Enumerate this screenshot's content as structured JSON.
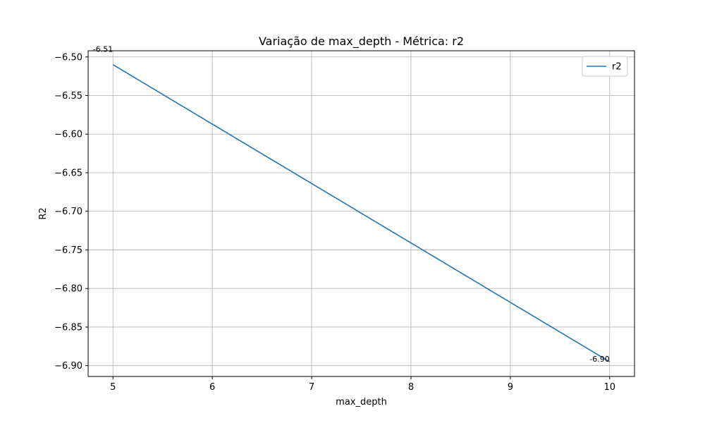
{
  "chart_data": {
    "type": "line",
    "title": "Variação de max_depth - Métrica: r2",
    "xlabel": "max_depth",
    "ylabel": "R2",
    "x": [
      5,
      10
    ],
    "series": [
      {
        "name": "r2",
        "values": [
          -6.51,
          -6.895
        ],
        "color": "#1f77b4"
      }
    ],
    "data_labels": [
      "-6.51",
      "-6.90"
    ],
    "xlim": [
      4.75,
      10.25
    ],
    "ylim": [
      -6.914,
      -6.492
    ],
    "xticks": [
      5,
      6,
      7,
      8,
      9,
      10
    ],
    "xtick_labels": [
      "5",
      "6",
      "7",
      "8",
      "9",
      "10"
    ],
    "yticks": [
      -6.5,
      -6.55,
      -6.6,
      -6.65,
      -6.7,
      -6.75,
      -6.8,
      -6.85,
      -6.9
    ],
    "ytick_labels": [
      "−6.50",
      "−6.55",
      "−6.60",
      "−6.65",
      "−6.70",
      "−6.75",
      "−6.80",
      "−6.85",
      "−6.90"
    ],
    "grid": true,
    "legend_position": "top-right"
  }
}
